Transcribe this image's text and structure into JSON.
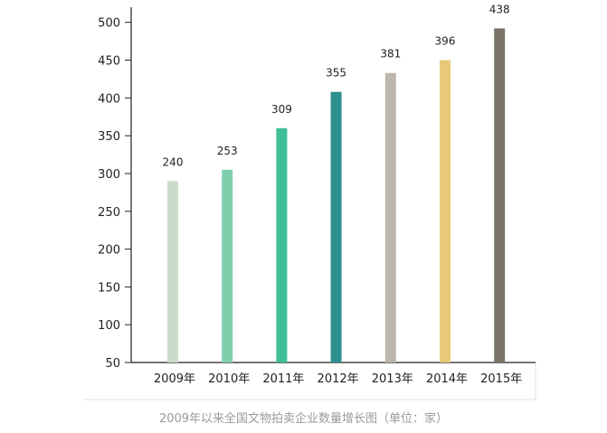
{
  "caption": "2009年以来全国文物拍卖企业数量增长图（单位：家）",
  "chart_data": {
    "type": "bar",
    "categories": [
      "2009年",
      "2010年",
      "2011年",
      "2012年",
      "2013年",
      "2014年",
      "2015年"
    ],
    "values": [
      240,
      253,
      309,
      355,
      381,
      396,
      438
    ],
    "plotted_heights": [
      290,
      305,
      360,
      408,
      433,
      450,
      492
    ],
    "colors": [
      "#c9dcc9",
      "#7fcfad",
      "#3fbf98",
      "#2e8f8f",
      "#bdb6aa",
      "#e8c97a",
      "#7a7466"
    ],
    "yticks": [
      50,
      100,
      150,
      200,
      250,
      300,
      350,
      400,
      450,
      500
    ],
    "ylim": [
      50,
      520
    ],
    "title": "",
    "xlabel": "",
    "ylabel": "",
    "grid": false,
    "legend": "none"
  }
}
